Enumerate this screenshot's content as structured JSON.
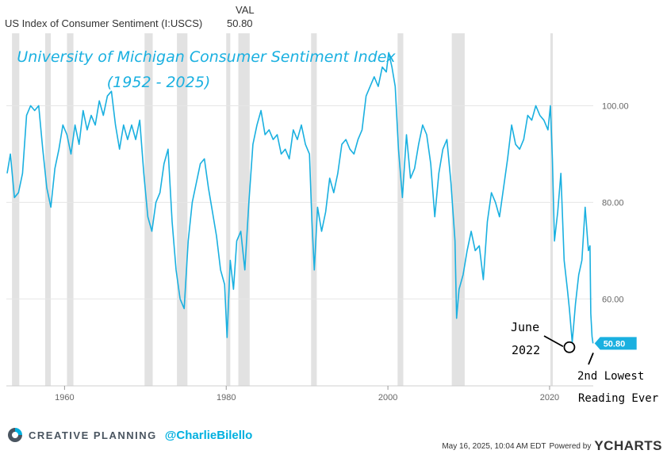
{
  "header": {
    "series_label": "US Index of Consumer Sentiment (I:USCS)",
    "val_label": "VAL",
    "val_value": "50.80"
  },
  "chart_data": {
    "type": "line",
    "title": "University of Michigan Consumer Sentiment Index",
    "subtitle": "(1952 - 2025)",
    "xlim": [
      1952.8,
      2025.4
    ],
    "ylim": [
      42,
      115
    ],
    "x_ticks": [
      1960,
      1980,
      2000,
      2020
    ],
    "x_tick_labels": [
      "1960",
      "1980",
      "2000",
      "2020"
    ],
    "y_ticks": [
      60,
      80,
      100
    ],
    "y_tick_labels": [
      "60.00",
      "80.00",
      "100.00"
    ],
    "recessions": [
      [
        1953.5,
        1954.4
      ],
      [
        1957.6,
        1958.3
      ],
      [
        1960.3,
        1961.1
      ],
      [
        1969.9,
        1970.9
      ],
      [
        1973.9,
        1975.2
      ],
      [
        1980.0,
        1980.5
      ],
      [
        1981.5,
        1982.9
      ],
      [
        1990.5,
        1991.2
      ],
      [
        2001.2,
        2001.9
      ],
      [
        2007.9,
        2009.5
      ],
      [
        2020.1,
        2020.4
      ]
    ],
    "series": [
      {
        "name": "US Index of Consumer Sentiment",
        "color": "#1ab0e0",
        "x": [
          1952.9,
          1953.3,
          1953.8,
          1954.3,
          1954.8,
          1955.3,
          1955.8,
          1956.3,
          1956.8,
          1957.3,
          1957.8,
          1958.3,
          1958.8,
          1959.3,
          1959.8,
          1960.3,
          1960.8,
          1961.3,
          1961.8,
          1962.3,
          1962.8,
          1963.3,
          1963.8,
          1964.3,
          1964.8,
          1965.3,
          1965.8,
          1966.3,
          1966.8,
          1967.3,
          1967.8,
          1968.3,
          1968.8,
          1969.3,
          1969.8,
          1970.3,
          1970.8,
          1971.3,
          1971.8,
          1972.3,
          1972.8,
          1973.3,
          1973.8,
          1974.3,
          1974.8,
          1975.3,
          1975.8,
          1976.3,
          1976.8,
          1977.3,
          1977.8,
          1978.3,
          1978.8,
          1979.3,
          1979.8,
          1980.1,
          1980.5,
          1980.9,
          1981.3,
          1981.8,
          1982.3,
          1982.8,
          1983.3,
          1983.8,
          1984.3,
          1984.8,
          1985.3,
          1985.8,
          1986.3,
          1986.8,
          1987.3,
          1987.8,
          1988.3,
          1988.8,
          1989.3,
          1989.8,
          1990.3,
          1990.6,
          1990.9,
          1991.3,
          1991.8,
          1992.3,
          1992.8,
          1993.3,
          1993.8,
          1994.3,
          1994.8,
          1995.3,
          1995.8,
          1996.3,
          1996.8,
          1997.3,
          1997.8,
          1998.3,
          1998.8,
          1999.3,
          1999.8,
          2000.1,
          2000.5,
          2000.9,
          2001.3,
          2001.8,
          2002.3,
          2002.8,
          2003.3,
          2003.8,
          2004.3,
          2004.8,
          2005.3,
          2005.8,
          2006.3,
          2006.8,
          2007.3,
          2007.8,
          2008.3,
          2008.5,
          2008.8,
          2009.3,
          2009.8,
          2010.3,
          2010.8,
          2011.3,
          2011.8,
          2012.3,
          2012.8,
          2013.3,
          2013.8,
          2014.3,
          2014.8,
          2015.3,
          2015.8,
          2016.3,
          2016.8,
          2017.3,
          2017.8,
          2018.3,
          2018.8,
          2019.3,
          2019.8,
          2020.1,
          2020.35,
          2020.6,
          2021.0,
          2021.4,
          2021.8,
          2022.2,
          2022.45,
          2022.8,
          2023.2,
          2023.6,
          2024.0,
          2024.4,
          2024.8,
          2025.0,
          2025.1,
          2025.25,
          2025.37
        ],
        "values": [
          86,
          90,
          81,
          82,
          86,
          98,
          100,
          99,
          100,
          91,
          83,
          79,
          87,
          91,
          96,
          94,
          90,
          96,
          92,
          99,
          95,
          98,
          96,
          101,
          98,
          102,
          103,
          96,
          91,
          96,
          93,
          96,
          93,
          97,
          86,
          77,
          74,
          80,
          82,
          88,
          91,
          76,
          66,
          60,
          58,
          72,
          80,
          84,
          88,
          89,
          83,
          78,
          73,
          66,
          63,
          52,
          68,
          62,
          72,
          74,
          66,
          80,
          92,
          96,
          99,
          94,
          95,
          93,
          94,
          90,
          91,
          89,
          95,
          93,
          96,
          92,
          90,
          76,
          66,
          79,
          74,
          78,
          85,
          82,
          86,
          92,
          93,
          91,
          90,
          93,
          95,
          102,
          104,
          106,
          104,
          108,
          107,
          111,
          108,
          104,
          91,
          81,
          94,
          85,
          87,
          92,
          96,
          94,
          88,
          77,
          86,
          91,
          93,
          84,
          72,
          56,
          62,
          65,
          70,
          74,
          70,
          71,
          64,
          76,
          82,
          80,
          77,
          83,
          89,
          96,
          92,
          91,
          93,
          98,
          97,
          100,
          98,
          97,
          95,
          100,
          89,
          72,
          78,
          86,
          68,
          62,
          58,
          51,
          59,
          65,
          68,
          79,
          70,
          71,
          57,
          52.2,
          50.8
        ]
      }
    ],
    "annotations": {
      "low_2022_line1": "June",
      "low_2022_line2": "2022",
      "low_2022_x": 2022.45,
      "low_2022_y": 50.0,
      "current_value": 50.8,
      "current_label": "50.80",
      "second_lowest_line1": "2nd Lowest",
      "second_lowest_line2": "Reading Ever"
    }
  },
  "branding": {
    "name": "CREATIVE PLANNING",
    "handle": "@CharlieBilello",
    "timestamp": "May 16, 2025, 10:04 AM EDT",
    "powered_by": "Powered by",
    "ycharts": "YCHARTS"
  },
  "colors": {
    "line": "#1ab0e0",
    "title": "#1ab0e0",
    "recession": "#e2e2e2",
    "grid": "#e6e6e6"
  }
}
